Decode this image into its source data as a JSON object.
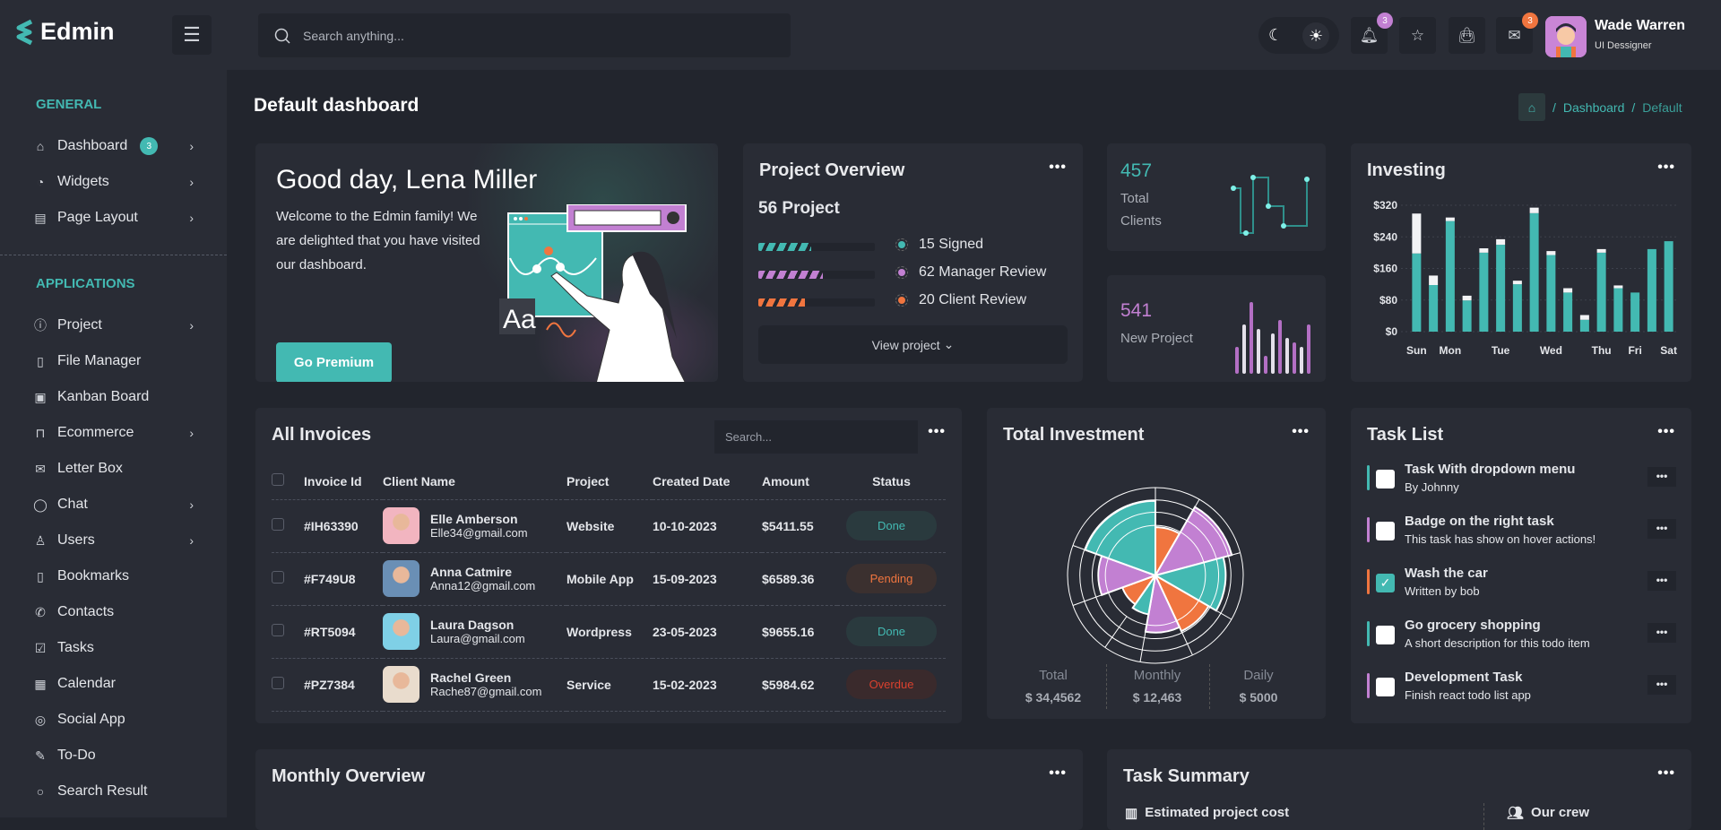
{
  "app": {
    "name": "Edmin"
  },
  "header": {
    "search_placeholder": "Search anything...",
    "notif_count": "3",
    "mail_count": "3",
    "user_name": "Wade Warren",
    "user_role": "UI Dessigner"
  },
  "sidebar": {
    "general_label": "GENERAL",
    "applications_label": "APPLICATIONS",
    "general": [
      {
        "label": "Dashboard",
        "icon": "home-icon",
        "badge": "3",
        "chevron": true
      },
      {
        "label": "Widgets",
        "icon": "pie-icon",
        "chevron": true
      },
      {
        "label": "Page Layout",
        "icon": "layout-icon",
        "chevron": true
      }
    ],
    "applications": [
      {
        "label": "Project",
        "icon": "info-icon",
        "chevron": true
      },
      {
        "label": "File Manager",
        "icon": "file-icon"
      },
      {
        "label": "Kanban Board",
        "icon": "board-icon"
      },
      {
        "label": "Ecommerce",
        "icon": "bag-icon",
        "chevron": true
      },
      {
        "label": "Letter Box",
        "icon": "mail-icon"
      },
      {
        "label": "Chat",
        "icon": "chat-icon",
        "chevron": true
      },
      {
        "label": "Users",
        "icon": "user-icon",
        "chevron": true
      },
      {
        "label": "Bookmarks",
        "icon": "bookmark-icon"
      },
      {
        "label": "Contacts",
        "icon": "phone-icon"
      },
      {
        "label": "Tasks",
        "icon": "check-icon"
      },
      {
        "label": "Calendar",
        "icon": "calendar-icon"
      },
      {
        "label": "Social App",
        "icon": "camera-icon"
      },
      {
        "label": "To-Do",
        "icon": "edit-icon"
      },
      {
        "label": "Search Result",
        "icon": "search-icon"
      }
    ]
  },
  "page": {
    "title": "Default dashboard",
    "breadcrumb": [
      "Dashboard",
      "Default"
    ]
  },
  "welcome": {
    "title": "Good day, Lena Miller",
    "text": "Welcome to the Edmin family! We are delighted that you have visited our dashboard.",
    "button": "Go Premium",
    "illustration_text": "Aa"
  },
  "project_overview": {
    "title": "Project Overview",
    "count": "56 Project",
    "items": [
      {
        "label": "15 Signed",
        "color": "#43b9b2",
        "progress": 45
      },
      {
        "label": "62 Manager Review",
        "color": "#c280d2",
        "progress": 55
      },
      {
        "label": "20 Client Review",
        "color": "#f0753f",
        "progress": 40
      }
    ],
    "button": "View project"
  },
  "clients": {
    "value": "457",
    "label": "Total Clients"
  },
  "new_project": {
    "value": "541",
    "label": "New Project",
    "bars": [
      30,
      55,
      80,
      50,
      20,
      45,
      60,
      40,
      35,
      30,
      55
    ]
  },
  "investing": {
    "title": "Investing"
  },
  "invoices": {
    "title": "All Invoices",
    "search_placeholder": "Search...",
    "columns": [
      "Invoice Id",
      "Client Name",
      "Project",
      "Created Date",
      "Amount",
      "Status"
    ],
    "rows": [
      {
        "id": "#IH63390",
        "name": "Elle Amberson",
        "email": "Elle34@gmail.com",
        "project": "Website",
        "date": "10-10-2023",
        "amount": "$5411.55",
        "status": "Done"
      },
      {
        "id": "#F749U8",
        "name": "Anna Catmire",
        "email": "Anna12@gmail.com",
        "project": "Mobile App",
        "date": "15-09-2023",
        "amount": "$6589.36",
        "status": "Pending"
      },
      {
        "id": "#RT5094",
        "name": "Laura Dagson",
        "email": "Laura@gmail.com",
        "project": "Wordpress",
        "date": "23-05-2023",
        "amount": "$9655.16",
        "status": "Done"
      },
      {
        "id": "#PZ7384",
        "name": "Rachel Green",
        "email": "Rache87@gmail.com",
        "project": "Service",
        "date": "15-02-2023",
        "amount": "$5984.62",
        "status": "Overdue"
      }
    ]
  },
  "total_investment": {
    "title": "Total Investment",
    "stats": [
      {
        "label": "Total",
        "value": "$ 34,4562"
      },
      {
        "label": "Monthly",
        "value": "$ 12,463"
      },
      {
        "label": "Daily",
        "value": "$ 5000"
      }
    ]
  },
  "tasks": {
    "title": "Task List",
    "items": [
      {
        "title": "Task With dropdown menu",
        "sub": "By Johnny",
        "color": "#43b9b2",
        "done": false
      },
      {
        "title": "Badge on the right task",
        "sub": "This task has show on hover actions!",
        "color": "#c280d2",
        "done": false
      },
      {
        "title": "Wash the car",
        "sub": "Written by bob",
        "color": "#f0753f",
        "done": true
      },
      {
        "title": "Go grocery shopping",
        "sub": "A short description for this todo item",
        "color": "#43b9b2",
        "done": false
      },
      {
        "title": "Development Task",
        "sub": "Finish react todo list app",
        "color": "#c280d2",
        "done": false
      }
    ]
  },
  "monthly": {
    "title": "Monthly Overview"
  },
  "task_summary": {
    "title": "Task Summary",
    "col1": "Estimated project cost",
    "col2": "Our crew"
  },
  "colors": {
    "teal": "#43b9b2",
    "purple": "#c280d2",
    "orange": "#f0753f"
  },
  "chart_data": [
    {
      "type": "bar",
      "title": "Investing",
      "categories": [
        "Sun",
        "",
        "Mon",
        "",
        "",
        "Tue",
        "",
        "",
        "Wed",
        "",
        "",
        "Thu",
        "",
        "Fri",
        "",
        "Sat"
      ],
      "series": [
        {
          "name": "base",
          "color": "#43b9b2",
          "values": [
            198,
            118,
            280,
            79,
            200,
            220,
            120,
            300,
            194,
            99,
            30,
            200,
            110,
            99,
            209,
            229
          ]
        },
        {
          "name": "top",
          "color": "#f2f3f5",
          "values": [
            101,
            24,
            9,
            12,
            11,
            14,
            9,
            14,
            10,
            11,
            12,
            9,
            7,
            0,
            0,
            0
          ]
        }
      ],
      "yticks": [
        "$0",
        "$80",
        "$160",
        "$240",
        "$320"
      ],
      "ylim": [
        0,
        320
      ],
      "grid": true
    },
    {
      "type": "pie",
      "subtype": "polar-area",
      "title": "Total Investment",
      "values": [
        0.55,
        0.9,
        0.8,
        0.7,
        0.65,
        0.45,
        0.4,
        0.65,
        0.85
      ],
      "colors": [
        "#f0753f",
        "#c280d2",
        "#43b9b2",
        "#f0753f",
        "#c280d2",
        "#43b9b2",
        "#f0753f",
        "#c280d2",
        "#43b9b2"
      ],
      "angles": [
        30,
        45,
        45,
        35,
        35,
        25,
        35,
        40,
        70
      ]
    }
  ]
}
